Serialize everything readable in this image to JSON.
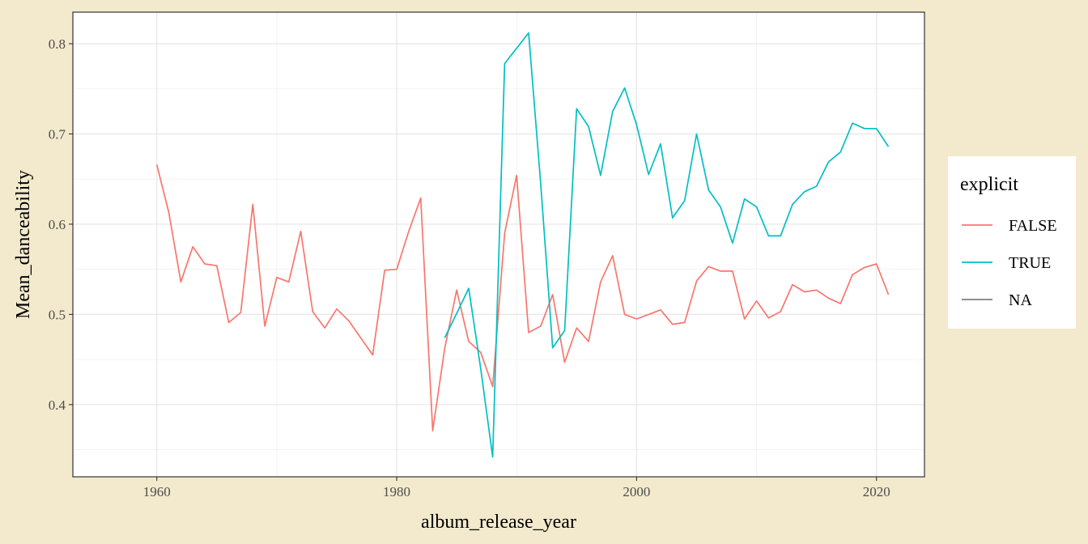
{
  "chart_data": {
    "type": "line",
    "xlabel": "album_release_year",
    "ylabel": "Mean_danceability",
    "xlim": [
      1953,
      2024
    ],
    "ylim": [
      0.32,
      0.835
    ],
    "x_ticks": [
      1960,
      1980,
      2000,
      2020
    ],
    "y_ticks": [
      0.4,
      0.5,
      0.6,
      0.7,
      0.8
    ],
    "grid": true,
    "legend": {
      "title": "explicit",
      "placement": "right"
    },
    "series": [
      {
        "name": "FALSE",
        "color": "#f8766d",
        "points": [
          [
            1960,
            0.666
          ],
          [
            1961,
            0.613
          ],
          [
            1962,
            0.536
          ],
          [
            1963,
            0.575
          ],
          [
            1964,
            0.556
          ],
          [
            1965,
            0.554
          ],
          [
            1966,
            0.491
          ],
          [
            1967,
            0.502
          ],
          [
            1968,
            0.622
          ],
          [
            1969,
            0.487
          ],
          [
            1970,
            0.541
          ],
          [
            1971,
            0.536
          ],
          [
            1972,
            0.592
          ],
          [
            1973,
            0.503
          ],
          [
            1974,
            0.485
          ],
          [
            1975,
            0.506
          ],
          [
            1976,
            0.493
          ],
          [
            1977,
            0.474
          ],
          [
            1978,
            0.455
          ],
          [
            1979,
            0.549
          ],
          [
            1980,
            0.55
          ],
          [
            1981,
            0.592
          ],
          [
            1982,
            0.629
          ],
          [
            1983,
            0.371
          ],
          [
            1984,
            0.462
          ],
          [
            1985,
            0.527
          ],
          [
            1986,
            0.47
          ],
          [
            1987,
            0.458
          ],
          [
            1988,
            0.42
          ],
          [
            1989,
            0.59
          ],
          [
            1990,
            0.654
          ],
          [
            1991,
            0.48
          ],
          [
            1992,
            0.487
          ],
          [
            1993,
            0.522
          ],
          [
            1994,
            0.447
          ],
          [
            1995,
            0.485
          ],
          [
            1996,
            0.47
          ],
          [
            1997,
            0.536
          ],
          [
            1998,
            0.565
          ],
          [
            1999,
            0.5
          ],
          [
            2000,
            0.495
          ],
          [
            2001,
            0.5
          ],
          [
            2002,
            0.505
          ],
          [
            2003,
            0.489
          ],
          [
            2004,
            0.491
          ],
          [
            2005,
            0.537
          ],
          [
            2006,
            0.553
          ],
          [
            2007,
            0.548
          ],
          [
            2008,
            0.548
          ],
          [
            2009,
            0.495
          ],
          [
            2010,
            0.515
          ],
          [
            2011,
            0.496
          ],
          [
            2012,
            0.503
          ],
          [
            2013,
            0.533
          ],
          [
            2014,
            0.525
          ],
          [
            2015,
            0.527
          ],
          [
            2016,
            0.518
          ],
          [
            2017,
            0.512
          ],
          [
            2018,
            0.544
          ],
          [
            2019,
            0.552
          ],
          [
            2020,
            0.556
          ],
          [
            2021,
            0.522
          ]
        ]
      },
      {
        "name": "TRUE",
        "color": "#00bfc4",
        "points": [
          [
            1984,
            0.474
          ],
          [
            1985,
            0.501
          ],
          [
            1986,
            0.529
          ],
          [
            1987,
            0.44
          ],
          [
            1988,
            0.342
          ],
          [
            1989,
            0.778
          ],
          [
            1990,
            0.795
          ],
          [
            1991,
            0.812
          ],
          [
            1992,
            0.645
          ],
          [
            1993,
            0.463
          ],
          [
            1994,
            0.482
          ],
          [
            1995,
            0.728
          ],
          [
            1996,
            0.708
          ],
          [
            1997,
            0.654
          ],
          [
            1998,
            0.725
          ],
          [
            1999,
            0.751
          ],
          [
            2000,
            0.71
          ],
          [
            2001,
            0.655
          ],
          [
            2002,
            0.689
          ],
          [
            2003,
            0.607
          ],
          [
            2004,
            0.626
          ],
          [
            2005,
            0.7
          ],
          [
            2006,
            0.638
          ],
          [
            2007,
            0.619
          ],
          [
            2008,
            0.579
          ],
          [
            2009,
            0.628
          ],
          [
            2010,
            0.619
          ],
          [
            2011,
            0.587
          ],
          [
            2012,
            0.587
          ],
          [
            2013,
            0.622
          ],
          [
            2014,
            0.636
          ],
          [
            2015,
            0.642
          ],
          [
            2016,
            0.669
          ],
          [
            2017,
            0.68
          ],
          [
            2018,
            0.712
          ],
          [
            2019,
            0.706
          ],
          [
            2020,
            0.706
          ],
          [
            2021,
            0.686
          ]
        ]
      },
      {
        "name": "NA",
        "color": "#7f7f7f",
        "points": []
      }
    ]
  }
}
